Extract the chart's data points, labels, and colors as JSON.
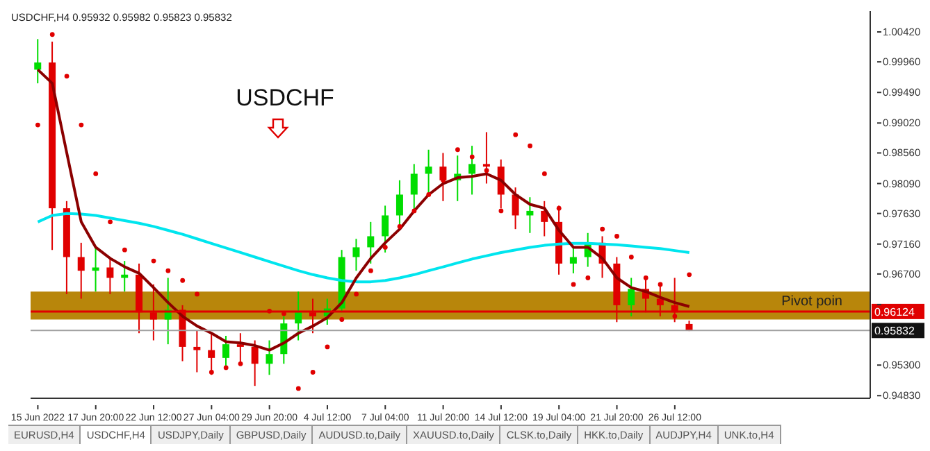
{
  "chart_data": {
    "type": "candlestick",
    "title": "USDCHF",
    "subtitle": "USDCHF,H4  0.95932 0.95982 0.95823 0.95832",
    "categories": [
      "15 Jun 2022",
      null,
      null,
      null,
      "17 Jun 20:00",
      null,
      null,
      null,
      "22 Jun 12:00",
      null,
      null,
      null,
      "27 Jun 04:00",
      null,
      null,
      null,
      "29 Jun 20:00",
      null,
      null,
      null,
      "4 Jul 12:00",
      null,
      null,
      null,
      "7 Jul 04:00",
      null,
      null,
      null,
      "11 Jul 20:00",
      null,
      null,
      null,
      "14 Jul 12:00",
      null,
      null,
      null,
      "19 Jul 04:00",
      null,
      null,
      null,
      "21 Jul 20:00",
      null,
      null,
      null,
      "26 Jul 12:00",
      null,
      null,
      null,
      null,
      null,
      null,
      null,
      null,
      null,
      null,
      null,
      null,
      null
    ],
    "series": [
      {
        "type": "line",
        "color": "#00e5ee",
        "values": [
          0.975,
          0.976,
          0.9763,
          0.9762,
          0.976,
          0.9756,
          0.9752,
          0.9748,
          0.9743,
          0.9737,
          0.9731,
          0.9724,
          0.9717,
          0.971,
          0.9703,
          0.9696,
          0.9689,
          0.9682,
          0.9675,
          0.9669,
          0.9664,
          0.966,
          0.9658,
          0.9658,
          0.966,
          0.9664,
          0.9669,
          0.9675,
          0.9681,
          0.9687,
          0.9693,
          0.9698,
          0.9703,
          0.9707,
          0.9711,
          0.9714,
          0.9716,
          0.9717,
          0.9717,
          0.9716,
          0.9715,
          0.9713,
          0.9711,
          0.9709,
          0.9706,
          0.9703,
          null,
          null,
          null,
          null,
          null,
          null,
          null,
          null,
          null,
          null,
          null,
          null
        ]
      },
      {
        "type": "line",
        "color": "#8b0000",
        "values": [
          0.9984,
          0.9963,
          0.9856,
          0.975,
          0.9711,
          0.9694,
          0.9681,
          0.9671,
          0.9649,
          0.9626,
          0.9605,
          0.959,
          0.9579,
          0.9566,
          0.9564,
          0.956,
          0.9553,
          0.9564,
          0.9579,
          0.959,
          0.9603,
          0.9626,
          0.9664,
          0.9694,
          0.9718,
          0.9739,
          0.9767,
          0.9792,
          0.9809,
          0.9818,
          0.982,
          0.9824,
          0.9814,
          0.9792,
          0.9777,
          0.9771,
          0.9737,
          0.9711,
          0.9711,
          0.9694,
          0.9664,
          0.9649,
          0.9643,
          0.9634,
          0.9626,
          0.962,
          null,
          null,
          null,
          null,
          null,
          null,
          null,
          null,
          null,
          null,
          null,
          null
        ]
      },
      {
        "type": "scatter",
        "color": "#e00000",
        "marker": "circle",
        "values": [
          0.9899,
          1.0038,
          0.9974,
          0.9899,
          0.9824,
          0.975,
          0.9707,
          null,
          0.969,
          0.9675,
          0.966,
          0.9639,
          0.9519,
          0.9526,
          0.9532,
          null,
          0.9613,
          0.9609,
          0.9494,
          0.9519,
          0.9558,
          0.96,
          0.9639,
          0.9675,
          0.9711,
          0.9743,
          0.9767,
          0.9792,
          0.9814,
          0.9861,
          0.985,
          0.9829,
          0.9767,
          0.9884,
          0.9867,
          0.9824,
          0.9771,
          0.9654,
          0.9664,
          0.9739,
          0.9728,
          0.9696,
          0.9664,
          0.9654,
          0.9605,
          0.9669,
          null,
          null,
          null,
          null,
          null,
          null,
          null,
          null,
          null,
          null,
          null,
          null
        ]
      },
      {
        "ohlc": [
          [
            0.9984,
            1.0031,
            0.9963,
            0.9995
          ],
          [
            0.9995,
            1.0027,
            0.9707,
            0.9771
          ],
          [
            0.9771,
            0.9782,
            0.9639,
            0.9696
          ],
          [
            0.9696,
            0.9718,
            0.9632,
            0.9675
          ],
          [
            0.9675,
            0.9711,
            0.9643,
            0.968
          ],
          [
            0.968,
            0.9696,
            0.9639,
            0.9664
          ],
          [
            0.9664,
            0.969,
            0.9643,
            0.9669
          ],
          [
            0.9669,
            0.9686,
            0.9579,
            0.9611
          ],
          [
            0.9611,
            0.9654,
            0.9568,
            0.96
          ],
          [
            0.96,
            0.9664,
            0.9562,
            0.9615
          ],
          [
            0.9615,
            0.9622,
            0.9536,
            0.9558
          ],
          [
            0.9558,
            0.9583,
            0.9519,
            0.9553
          ],
          [
            0.9553,
            0.9579,
            0.9515,
            0.9541
          ],
          [
            0.9541,
            0.9575,
            0.9526,
            0.9562
          ],
          [
            0.9562,
            0.9579,
            0.9532,
            0.9558
          ],
          [
            0.9558,
            0.9568,
            0.9498,
            0.9532
          ],
          [
            0.9532,
            0.9568,
            0.9515,
            0.9547
          ],
          [
            0.9547,
            0.9605,
            0.9532,
            0.9594
          ],
          [
            0.9594,
            0.9643,
            0.9568,
            0.9611
          ],
          [
            0.9611,
            0.9632,
            0.9579,
            0.9605
          ],
          [
            0.9605,
            0.9632,
            0.9592,
            0.9617
          ],
          [
            0.9617,
            0.9707,
            0.9611,
            0.9696
          ],
          [
            0.9696,
            0.9724,
            0.9675,
            0.9711
          ],
          [
            0.9711,
            0.975,
            0.9686,
            0.9728
          ],
          [
            0.9728,
            0.9775,
            0.9703,
            0.976
          ],
          [
            0.976,
            0.9814,
            0.9745,
            0.9792
          ],
          [
            0.9792,
            0.9839,
            0.9767,
            0.9824
          ],
          [
            0.9824,
            0.9861,
            0.9792,
            0.9835
          ],
          [
            0.9835,
            0.9856,
            0.9782,
            0.9814
          ],
          [
            0.9814,
            0.9852,
            0.9782,
            0.9824
          ],
          [
            0.9824,
            0.9867,
            0.9792,
            0.9839
          ],
          [
            0.9839,
            0.9888,
            0.9809,
            0.9835
          ],
          [
            0.9835,
            0.9846,
            0.9771,
            0.9792
          ],
          [
            0.9792,
            0.9803,
            0.9739,
            0.976
          ],
          [
            0.976,
            0.9788,
            0.9733,
            0.9767
          ],
          [
            0.9767,
            0.9782,
            0.9728,
            0.975
          ],
          [
            0.975,
            0.9775,
            0.9669,
            0.9686
          ],
          [
            0.9686,
            0.9711,
            0.9671,
            0.9696
          ],
          [
            0.9696,
            0.9733,
            0.9681,
            0.9718
          ],
          [
            0.9718,
            0.9728,
            0.9664,
            0.9686
          ],
          [
            0.9686,
            0.9696,
            0.9596,
            0.9622
          ],
          [
            0.9622,
            0.9664,
            0.9605,
            0.9647
          ],
          [
            0.9647,
            0.9664,
            0.9611,
            0.9632
          ],
          [
            0.9632,
            0.9654,
            0.9605,
            0.9622
          ],
          [
            0.9622,
            0.9664,
            0.9596,
            0.9611
          ],
          [
            0.95932,
            0.95982,
            0.95823,
            0.95832
          ],
          null,
          null,
          null,
          null,
          null,
          null,
          null,
          null,
          null,
          null,
          null,
          null
        ],
        "colors": [
          "#00dd00",
          "#e00000",
          "#e00000",
          "#e00000",
          "#00dd00",
          "#e00000",
          "#00dd00",
          "#e00000",
          "#e00000",
          "#00dd00",
          "#e00000",
          "#e00000",
          "#e00000",
          "#00dd00",
          "#e00000",
          "#e00000",
          "#00dd00",
          "#00dd00",
          "#00dd00",
          "#e00000",
          "#00dd00",
          "#00dd00",
          "#00dd00",
          "#00dd00",
          "#00dd00",
          "#00dd00",
          "#00dd00",
          "#00dd00",
          "#e00000",
          "#00dd00",
          "#00dd00",
          "#e00000",
          "#e00000",
          "#e00000",
          "#00dd00",
          "#e00000",
          "#e00000",
          "#00dd00",
          "#00dd00",
          "#e00000",
          "#e00000",
          "#00dd00",
          "#e00000",
          "#e00000",
          "#e00000",
          "#e00000",
          null,
          null,
          null,
          null,
          null,
          null,
          null,
          null,
          null,
          null,
          null,
          null
        ]
      }
    ],
    "ylim": [
      0.9479,
      1.0074
    ],
    "yticks": [
      {
        "value": 1.0042,
        "label": "1.00420"
      },
      {
        "value": 0.9996,
        "label": "0.99960"
      },
      {
        "value": 0.9949,
        "label": "0.99490"
      },
      {
        "value": 0.9902,
        "label": "0.99020"
      },
      {
        "value": 0.9856,
        "label": "0.98560"
      },
      {
        "value": 0.9809,
        "label": "0.98090"
      },
      {
        "value": 0.9763,
        "label": "0.97630"
      },
      {
        "value": 0.9716,
        "label": "0.97160"
      },
      {
        "value": 0.967,
        "label": "0.96700"
      },
      {
        "value": 0.9623,
        "label": null
      },
      {
        "value": 0.9577,
        "label": null
      },
      {
        "value": 0.953,
        "label": "0.95300"
      },
      {
        "value": 0.9483,
        "label": "0.94830"
      }
    ],
    "ref_lines": [
      {
        "axis": "y",
        "value": 0.96124,
        "label": "0.96124",
        "color": "#e00000"
      },
      {
        "axis": "y",
        "value": 0.95832,
        "label": "0.95832",
        "color": "#a0a0a0"
      }
    ],
    "bands": [
      {
        "axis": "y",
        "from": 0.96,
        "to": 0.9643,
        "label": "Pivot poin",
        "color": "#b8860b"
      }
    ],
    "grid": false,
    "annotations": [
      "EURUSD,H4",
      "USDCHF,H4",
      "USDJPY,Daily",
      "GBPUSD,Daily",
      "AUDUSD.to,Daily",
      "XAUUSD.to,Daily",
      "CLSK.to,Daily",
      "HKK.to,Daily",
      "AUDJPY,H4",
      "UNK.to,H4"
    ]
  }
}
